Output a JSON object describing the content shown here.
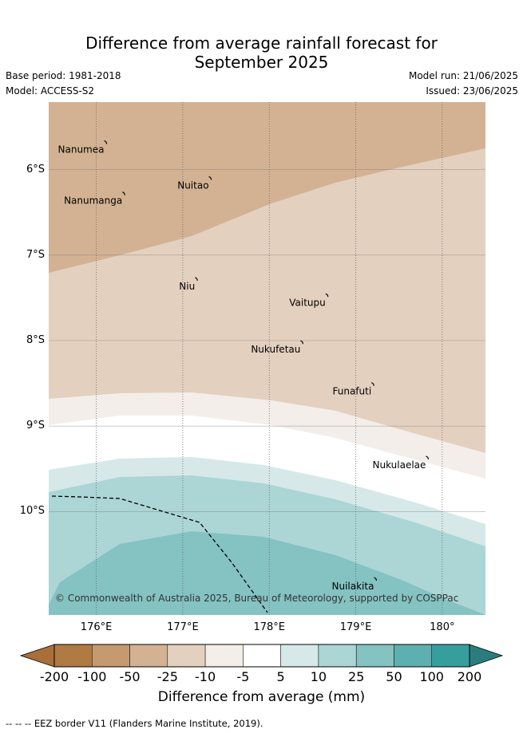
{
  "header": {
    "title_line1": "Difference from average rainfall forecast for",
    "title_line2": "September 2025",
    "base_period": "Base period: 1981-2018",
    "model": "Model: ACCESS-S2",
    "model_run": "Model run: 21/06/2025",
    "issued": "Issued: 23/06/2025"
  },
  "map": {
    "lon_range": [
      175.45,
      180.5
    ],
    "lat_range": [
      -6.8,
      -12.2
    ],
    "lat_top": -5.21,
    "lat_bottom": -11.21,
    "lat_ticks": [
      {
        "value": -6,
        "label": "6°S"
      },
      {
        "value": -7,
        "label": "7°S"
      },
      {
        "value": -8,
        "label": "8°S"
      },
      {
        "value": -9,
        "label": "9°S"
      },
      {
        "value": -10,
        "label": "10°S"
      }
    ],
    "lon_ticks": [
      {
        "value": 176,
        "label": "176°E"
      },
      {
        "value": 177,
        "label": "177°E"
      },
      {
        "value": 178,
        "label": "178°E"
      },
      {
        "value": 179,
        "label": "179°E"
      },
      {
        "value": 180,
        "label": "180°"
      }
    ],
    "places": [
      {
        "name": "Nanumea",
        "lon": 176.11,
        "lat": -5.69
      },
      {
        "name": "Nuitao",
        "lon": 177.32,
        "lat": -6.11
      },
      {
        "name": "Nanumanga",
        "lon": 176.32,
        "lat": -6.29
      },
      {
        "name": "Niu",
        "lon": 177.16,
        "lat": -7.29
      },
      {
        "name": "Vaitupu",
        "lon": 178.67,
        "lat": -7.48
      },
      {
        "name": "Nukufetau",
        "lon": 178.38,
        "lat": -8.03
      },
      {
        "name": "Funafuti",
        "lon": 179.2,
        "lat": -8.52
      },
      {
        "name": "Nukulaelae",
        "lon": 179.83,
        "lat": -9.38
      },
      {
        "name": "Nuilakita",
        "lon": 179.23,
        "lat": -10.8
      }
    ],
    "copyright": "© Commonwealth of Australia 2025, Bureau of Meteorology, supported by COSPPac"
  },
  "legend": {
    "title": "Difference from average (mm)",
    "ticks": [
      "-200",
      "-100",
      "-50",
      "-25",
      "-10",
      "-5",
      "5",
      "10",
      "25",
      "50",
      "100",
      "200"
    ],
    "colors": [
      "#a86f3a",
      "#b07a43",
      "#c49a6e",
      "#d3b293",
      "#e4d0bf",
      "#f3eee9",
      "#ffffff",
      "#d6e8e8",
      "#acd5d5",
      "#85c2c2",
      "#5eb0b0",
      "#379e9e",
      "#2b7d7d"
    ]
  },
  "footer": {
    "text": "--  --  -- EEZ border V11 (Flanders Marine Institute, 2019)."
  }
}
